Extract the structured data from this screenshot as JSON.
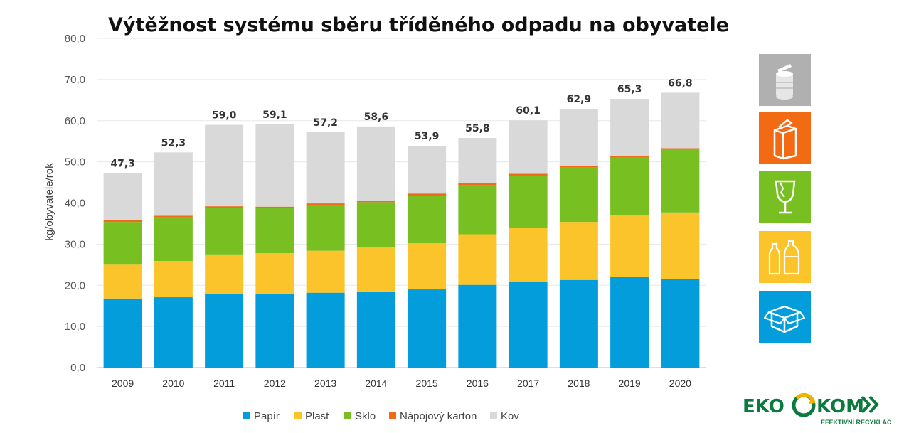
{
  "chart_data": {
    "type": "bar",
    "stacked": true,
    "title": "Výtěžnost systému sběru tříděného odpadu na obyvatele",
    "ylabel": "kg/obyvatele/rok",
    "xlabel": "",
    "ylim": [
      0,
      80
    ],
    "yticks": [
      "0,0",
      "10,0",
      "20,0",
      "30,0",
      "40,0",
      "50,0",
      "60,0",
      "70,0",
      "80,0"
    ],
    "ytick_values": [
      0,
      10,
      20,
      30,
      40,
      50,
      60,
      70,
      80
    ],
    "grid": true,
    "legend_position": "bottom",
    "categories": [
      "2009",
      "2010",
      "2011",
      "2012",
      "2013",
      "2014",
      "2015",
      "2016",
      "2017",
      "2018",
      "2019",
      "2020"
    ],
    "totals": [
      "47,3",
      "52,3",
      "59,0",
      "59,1",
      "57,2",
      "58,6",
      "53,9",
      "55,8",
      "60,1",
      "62,9",
      "65,3",
      "66,8"
    ],
    "total_values": [
      47.3,
      52.3,
      59.0,
      59.1,
      57.2,
      58.6,
      53.9,
      55.8,
      60.1,
      62.9,
      65.3,
      66.8
    ],
    "series": [
      {
        "name": "Papír",
        "color": "#039ddb",
        "values": [
          16.8,
          17.1,
          18.0,
          18.0,
          18.2,
          18.5,
          19.0,
          20.1,
          20.8,
          21.3,
          22.0,
          21.5
        ]
      },
      {
        "name": "Plast",
        "color": "#fcc42b",
        "values": [
          8.2,
          8.8,
          9.5,
          9.8,
          10.2,
          10.7,
          11.2,
          12.3,
          13.2,
          14.1,
          15.0,
          16.2
        ]
      },
      {
        "name": "Sklo",
        "color": "#78bf21",
        "values": [
          10.4,
          10.6,
          11.3,
          10.9,
          11.1,
          11.0,
          11.6,
          12.0,
          12.6,
          13.2,
          14.0,
          15.2
        ]
      },
      {
        "name": "Nápojový karton",
        "color": "#f26a14",
        "values": [
          0.4,
          0.4,
          0.4,
          0.4,
          0.4,
          0.4,
          0.5,
          0.4,
          0.5,
          0.4,
          0.4,
          0.4
        ]
      },
      {
        "name": "Kov",
        "color": "#d9d9d9",
        "values": [
          11.5,
          15.4,
          19.8,
          20.0,
          17.3,
          18.0,
          11.6,
          11.0,
          13.0,
          13.9,
          13.9,
          13.5
        ]
      }
    ]
  },
  "side_icons": [
    {
      "name": "can-icon",
      "color": "#b0b0b0"
    },
    {
      "name": "carton-icon",
      "color": "#f26a14"
    },
    {
      "name": "glass-icon",
      "color": "#78bf21"
    },
    {
      "name": "bottles-icon",
      "color": "#fcc42b"
    },
    {
      "name": "paper-box-icon",
      "color": "#039ddb"
    }
  ],
  "logo": {
    "left": "EKO",
    "right": "KOM",
    "tagline": "EFEKTIVNÍ RECYKLACE",
    "color": "#0c7a3e",
    "accent": "#f0b400"
  }
}
